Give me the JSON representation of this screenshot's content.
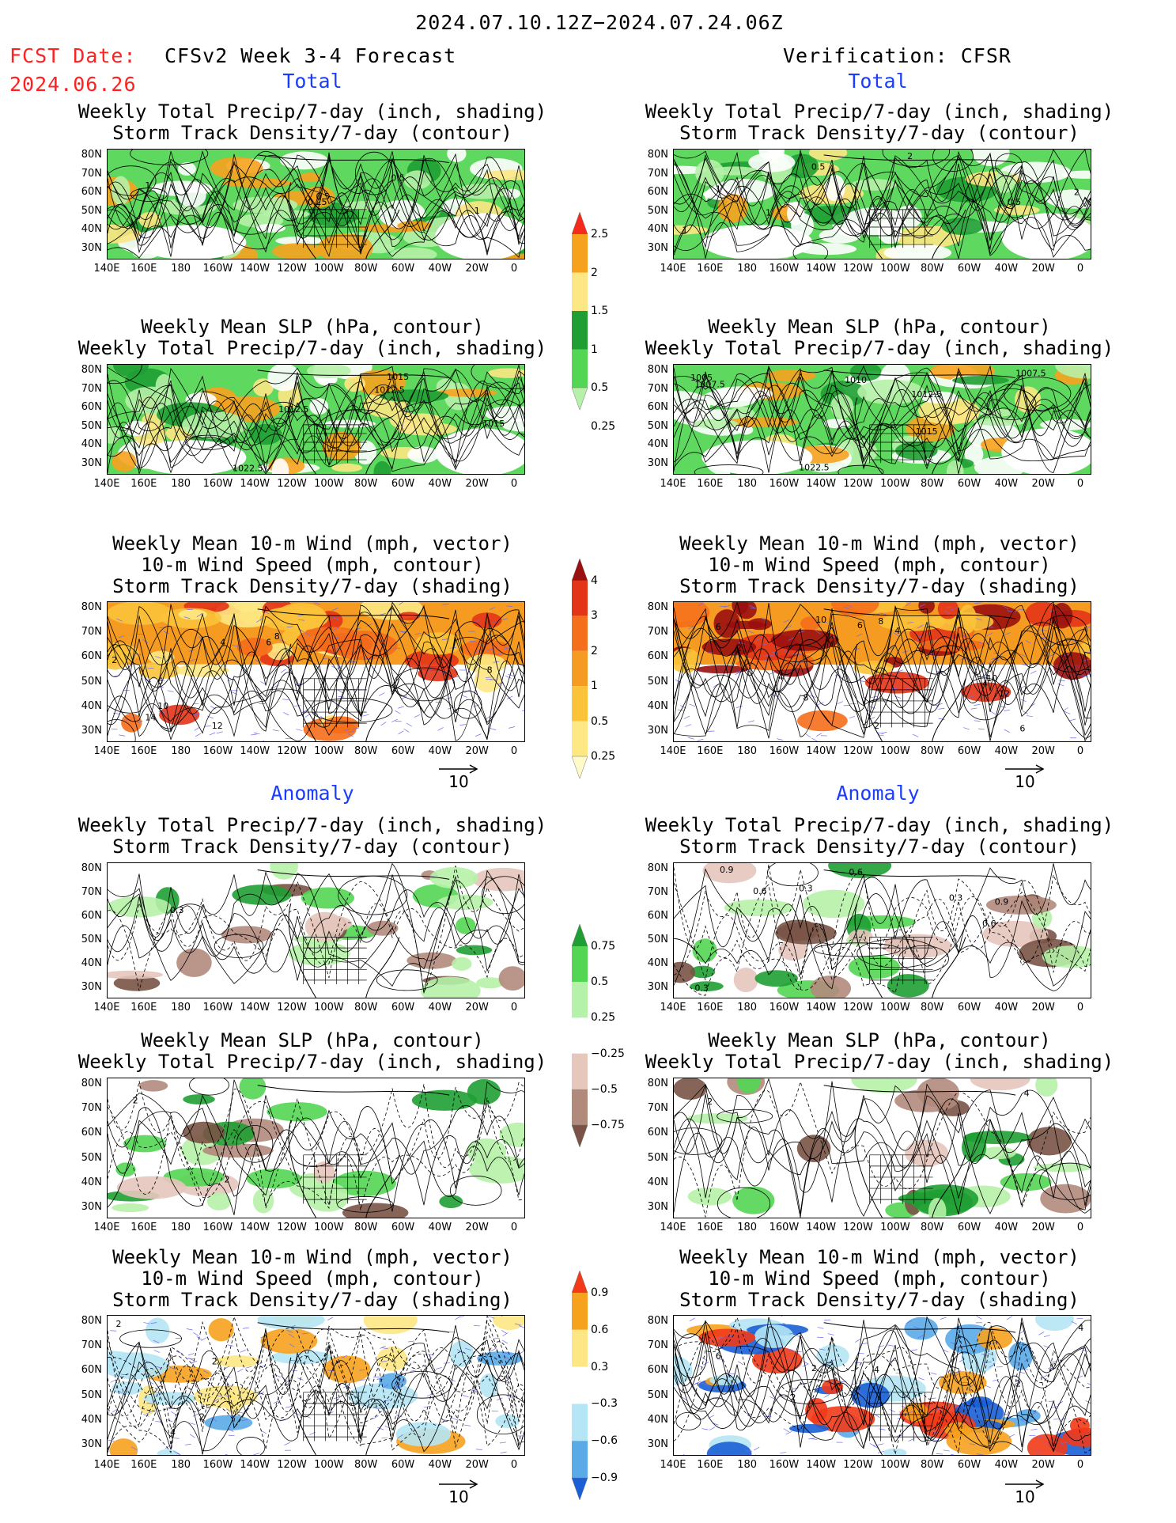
{
  "header": {
    "date_range": "2024.07.10.12Z−2024.07.24.06Z",
    "fcst_date_label": "FCST Date:",
    "fcst_date_value": "2024.06.26",
    "forecast_title": "CFSv2 Week 3-4 Forecast",
    "verification_title": "Verification: CFSR"
  },
  "sections": {
    "total_label": "Total",
    "anomaly_label": "Anomaly"
  },
  "panel_titles": {
    "precip_storm": [
      "Weekly Total Precip/7-day (inch, shading)",
      "Storm Track Density/7-day (contour)"
    ],
    "slp_precip": [
      "Weekly Mean SLP (hPa, contour)",
      "Weekly Total Precip/7-day (inch, shading)"
    ],
    "wind_storm": [
      "Weekly Mean 10-m Wind (mph, vector)",
      "10-m Wind Speed (mph, contour)",
      "Storm Track Density/7-day (shading)"
    ]
  },
  "axes": {
    "lat_ticks": [
      "80N",
      "70N",
      "60N",
      "50N",
      "40N",
      "30N"
    ],
    "lon_ticks": [
      "140E",
      "160E",
      "180",
      "160W",
      "140W",
      "120W",
      "100W",
      "80W",
      "60W",
      "40W",
      "20W",
      "0"
    ]
  },
  "vector_ref": "10",
  "colorbars": {
    "precip_total": {
      "labels": [
        "2.5",
        "2",
        "1.5",
        "1",
        "0.5",
        "0.25"
      ],
      "colors": [
        "#f42a1a",
        "#f7a21e",
        "#fde784",
        "#1f9e33",
        "#53d654",
        "#b6f1a9"
      ]
    },
    "storm_total": {
      "labels": [
        "4",
        "3",
        "2",
        "1",
        "0.5",
        "0.25"
      ],
      "colors": [
        "#9a1010",
        "#e33418",
        "#f56e1b",
        "#f59b22",
        "#fbc33a",
        "#fde884",
        "#fffbc8"
      ]
    },
    "precip_anom": {
      "labels": [
        "0.75",
        "0.5",
        "0.25",
        "−0.25",
        "−0.5",
        "−0.75"
      ],
      "colors": [
        "#1f9e33",
        "#53d654",
        "#b6f1a9",
        "#ffffff",
        "#e6c7bc",
        "#b28a7c",
        "#7a5346"
      ]
    },
    "storm_anom": {
      "labels": [
        "0.9",
        "0.6",
        "0.3",
        "−0.3",
        "−0.6",
        "−0.9"
      ],
      "colors": [
        "#f23a1a",
        "#f7a21e",
        "#fde784",
        "#ffffff",
        "#b5e6f5",
        "#5aaae8",
        "#1a5fd6"
      ]
    }
  },
  "map_labels": {
    "p1": [
      "1",
      "0.5",
      "0.25",
      "0.5",
      "1"
    ],
    "p2": [
      "2",
      "0.5",
      "1",
      "1",
      "0.5",
      "1",
      "2"
    ],
    "p3": [
      "1015",
      "1012.5",
      "1012.5",
      "1015",
      "1022.5"
    ],
    "p4": [
      "1005",
      "1007.5",
      "1010",
      "1012.5",
      "1007.5",
      "1015",
      "1022.5"
    ],
    "p5": [
      "4",
      "6",
      "8",
      "2",
      "8",
      "10",
      "14",
      "12",
      "6"
    ],
    "p6": [
      "6",
      "10",
      "8",
      "4",
      "2",
      "4",
      "6",
      "10",
      "4",
      "12",
      "8",
      "2",
      "6"
    ],
    "p7": [
      "0.3"
    ],
    "p8": [
      "0.9",
      "0.6",
      "0.3",
      "0.6",
      "0.3",
      "0.6",
      "0.9",
      "0.3"
    ],
    "p9": [
      "2",
      "2"
    ],
    "p10": [
      "2",
      "4"
    ],
    "p11": [
      "2",
      "2",
      "2",
      "4"
    ],
    "p12": [
      "4",
      "6",
      "2",
      "2",
      "4",
      "2"
    ]
  }
}
